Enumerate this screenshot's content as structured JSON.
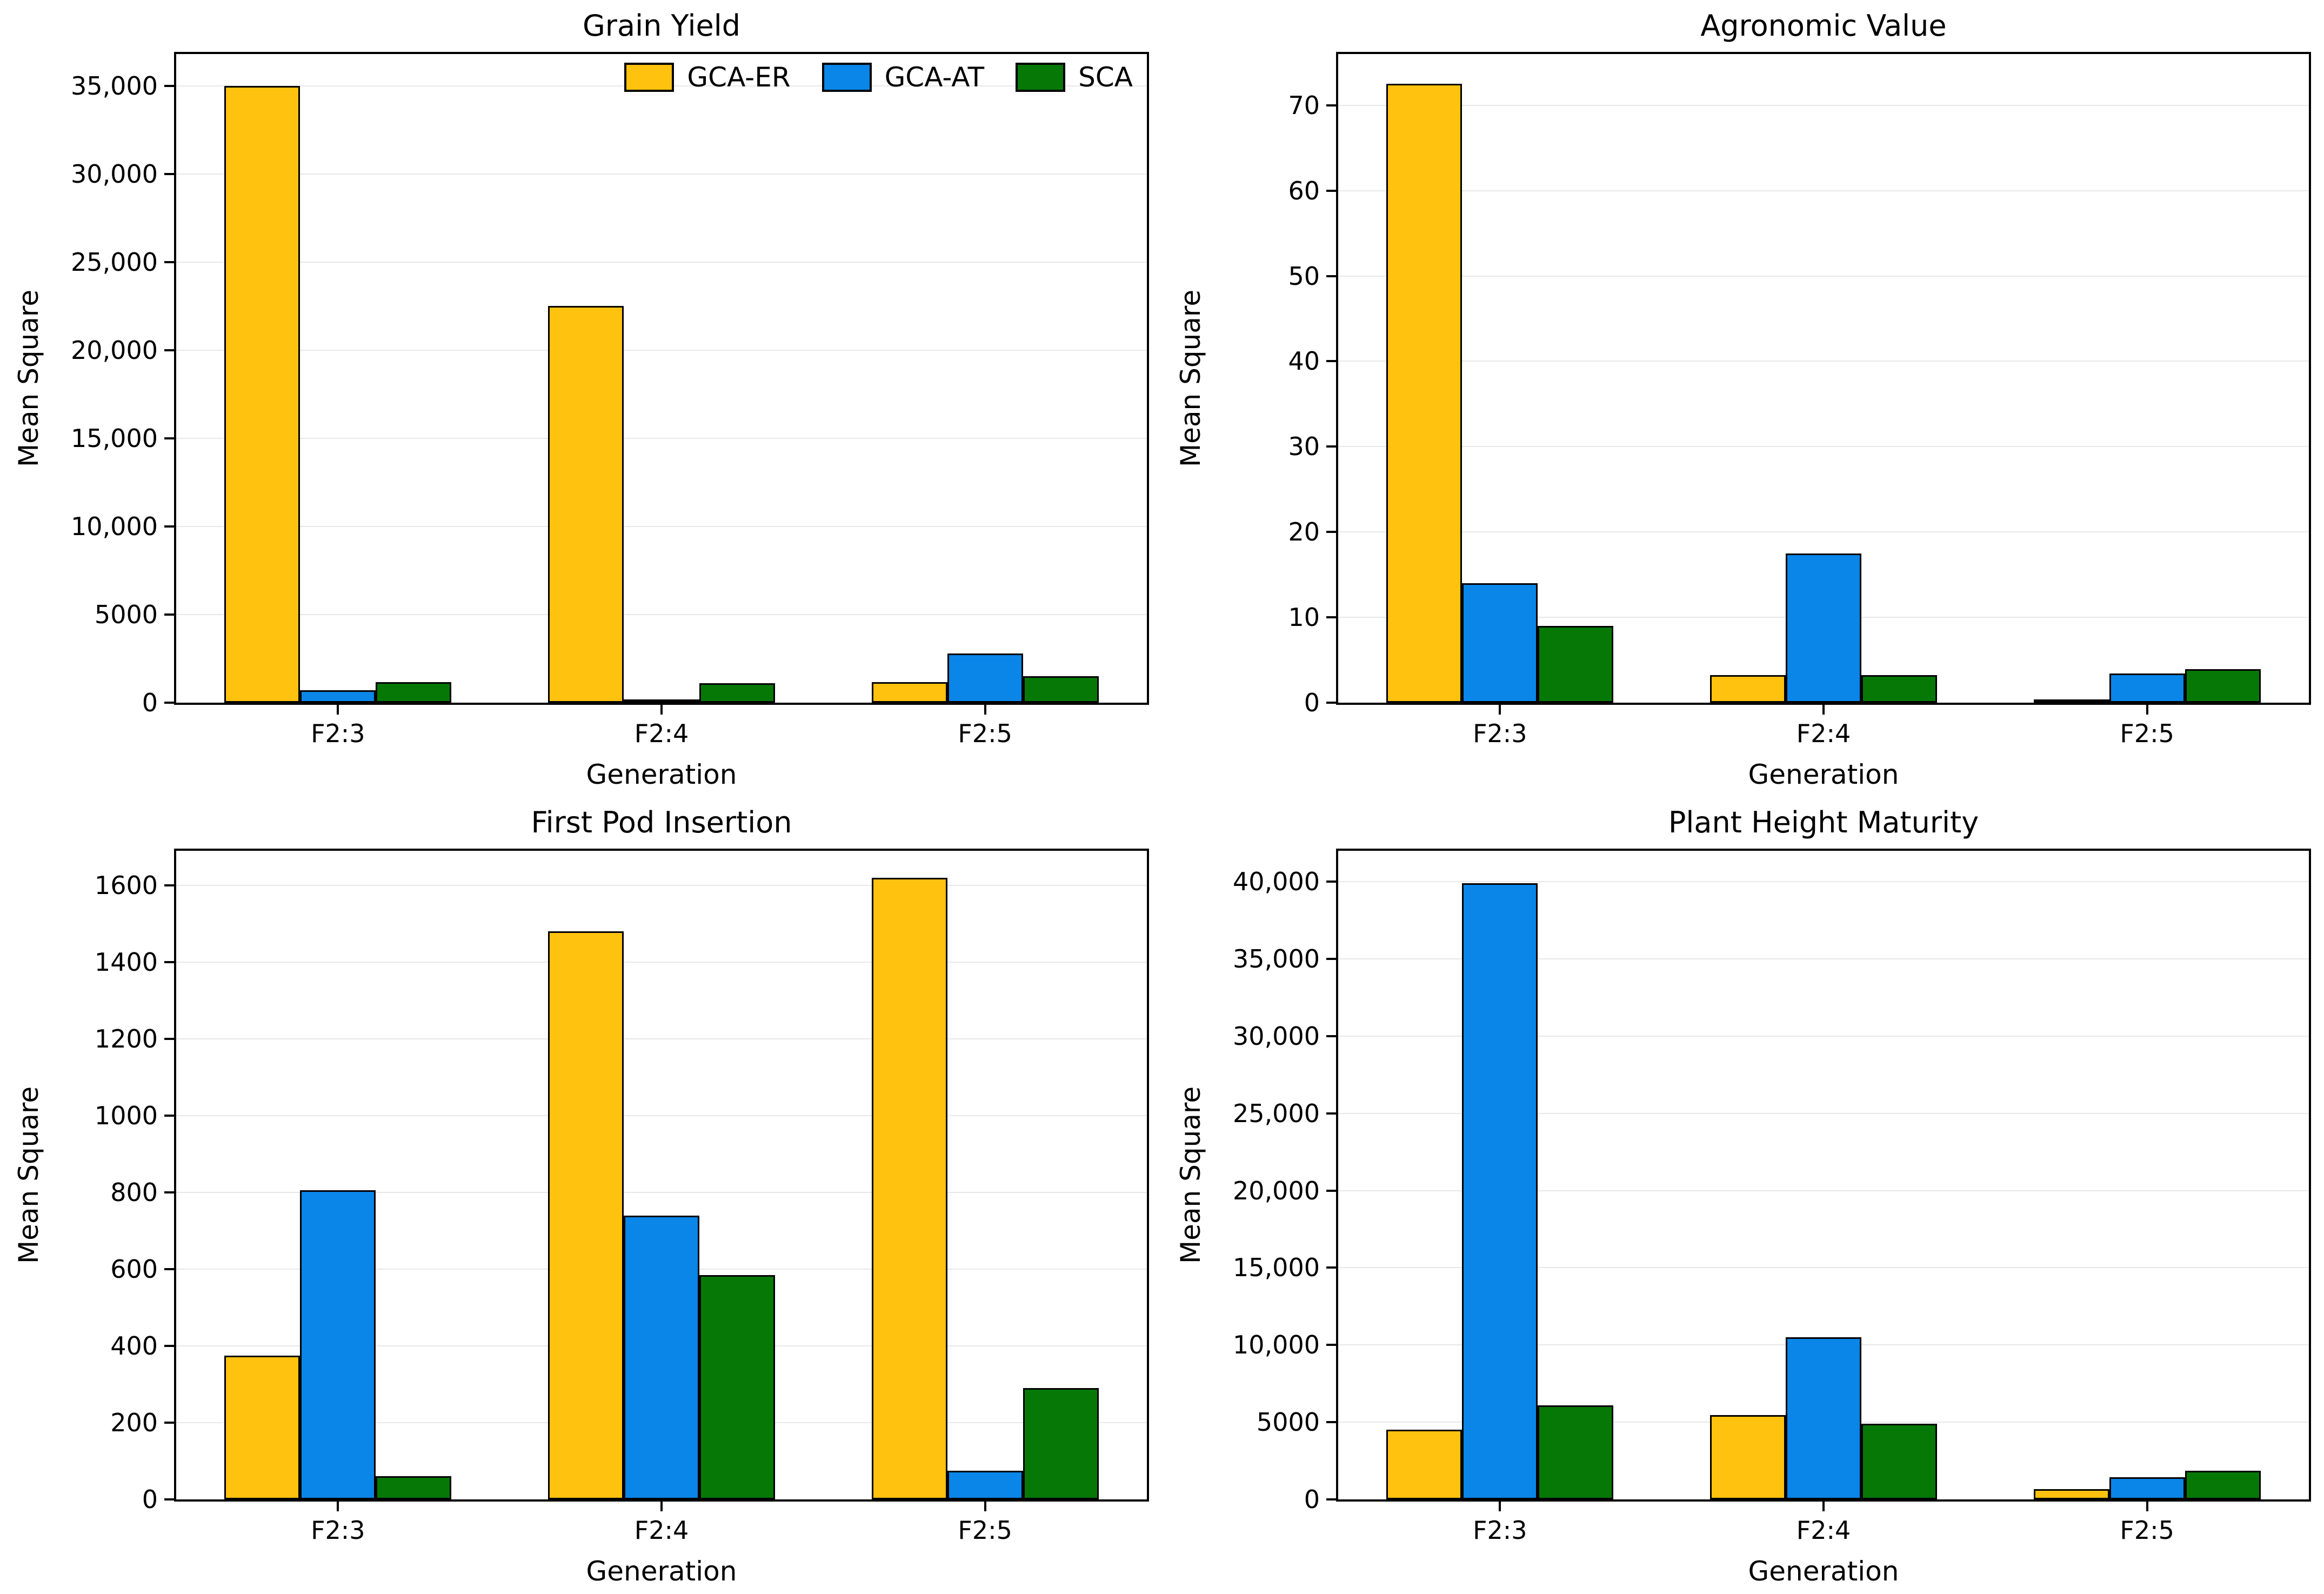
{
  "figure": {
    "background": "#ffffff"
  },
  "colors": {
    "gca_er": "#FFC20E",
    "gca_at": "#0A86E8",
    "sca": "#067806",
    "bar_edge": "#000000",
    "gridline": "#e8e8e8"
  },
  "legend": {
    "items": [
      {
        "label": "GCA-ER",
        "color": "#FFC20E"
      },
      {
        "label": "GCA-AT",
        "color": "#0A86E8"
      },
      {
        "label": "SCA",
        "color": "#067806"
      }
    ]
  },
  "chart_data": [
    {
      "type": "bar",
      "title": "Grain Yield",
      "xlabel": "Generation",
      "ylabel": "Mean Square",
      "categories": [
        "F2:3",
        "F2:4",
        "F2:5"
      ],
      "series": [
        {
          "name": "GCA-ER",
          "color": "#FFC20E",
          "values": [
            35000,
            22500,
            1150
          ]
        },
        {
          "name": "GCA-AT",
          "color": "#0A86E8",
          "values": [
            700,
            50,
            2800
          ]
        },
        {
          "name": "SCA",
          "color": "#067806",
          "values": [
            1150,
            1100,
            1500
          ]
        }
      ],
      "ylim": [
        0,
        36800
      ],
      "grid": true,
      "legend": true,
      "legend_position": "upper right",
      "yticks": [
        {
          "v": 0,
          "label": "0"
        },
        {
          "v": 5000,
          "label": "5000"
        },
        {
          "v": 10000,
          "label": "10,000"
        },
        {
          "v": 15000,
          "label": "15,000"
        },
        {
          "v": 20000,
          "label": "20,000"
        },
        {
          "v": 25000,
          "label": "25,000"
        },
        {
          "v": 30000,
          "label": "30,000"
        },
        {
          "v": 35000,
          "label": "35,000"
        }
      ]
    },
    {
      "type": "bar",
      "title": "Agronomic Value",
      "xlabel": "Generation",
      "ylabel": "Mean Square",
      "categories": [
        "F2:3",
        "F2:4",
        "F2:5"
      ],
      "series": [
        {
          "name": "GCA-ER",
          "color": "#FFC20E",
          "values": [
            72.5,
            3.2,
            0.1
          ]
        },
        {
          "name": "GCA-AT",
          "color": "#0A86E8",
          "values": [
            14,
            17.5,
            3.4
          ]
        },
        {
          "name": "SCA",
          "color": "#067806",
          "values": [
            9,
            3.2,
            3.9
          ]
        }
      ],
      "ylim": [
        0,
        76
      ],
      "grid": true,
      "legend": false,
      "yticks": [
        {
          "v": 0,
          "label": "0"
        },
        {
          "v": 10,
          "label": "10"
        },
        {
          "v": 20,
          "label": "20"
        },
        {
          "v": 30,
          "label": "30"
        },
        {
          "v": 40,
          "label": "40"
        },
        {
          "v": 50,
          "label": "50"
        },
        {
          "v": 60,
          "label": "60"
        },
        {
          "v": 70,
          "label": "70"
        }
      ]
    },
    {
      "type": "bar",
      "title": "First Pod Insertion",
      "xlabel": "Generation",
      "ylabel": "Mean Square",
      "categories": [
        "F2:3",
        "F2:4",
        "F2:5"
      ],
      "series": [
        {
          "name": "GCA-ER",
          "color": "#FFC20E",
          "values": [
            375,
            1480,
            1620
          ]
        },
        {
          "name": "GCA-AT",
          "color": "#0A86E8",
          "values": [
            805,
            740,
            75
          ]
        },
        {
          "name": "SCA",
          "color": "#067806",
          "values": [
            60,
            585,
            290
          ]
        }
      ],
      "ylim": [
        0,
        1690
      ],
      "grid": true,
      "legend": false,
      "yticks": [
        {
          "v": 0,
          "label": "0"
        },
        {
          "v": 200,
          "label": "200"
        },
        {
          "v": 400,
          "label": "400"
        },
        {
          "v": 600,
          "label": "600"
        },
        {
          "v": 800,
          "label": "800"
        },
        {
          "v": 1000,
          "label": "1000"
        },
        {
          "v": 1200,
          "label": "1200"
        },
        {
          "v": 1400,
          "label": "1400"
        },
        {
          "v": 1600,
          "label": "1600"
        }
      ]
    },
    {
      "type": "bar",
      "title": "Plant Height Maturity",
      "xlabel": "Generation",
      "ylabel": "Mean Square",
      "categories": [
        "F2:3",
        "F2:4",
        "F2:5"
      ],
      "series": [
        {
          "name": "GCA-ER",
          "color": "#FFC20E",
          "values": [
            4500,
            5450,
            650
          ]
        },
        {
          "name": "GCA-AT",
          "color": "#0A86E8",
          "values": [
            39900,
            10500,
            1450
          ]
        },
        {
          "name": "SCA",
          "color": "#067806",
          "values": [
            6100,
            4900,
            1850
          ]
        }
      ],
      "ylim": [
        0,
        42000
      ],
      "grid": true,
      "legend": false,
      "yticks": [
        {
          "v": 0,
          "label": "0"
        },
        {
          "v": 5000,
          "label": "5000"
        },
        {
          "v": 10000,
          "label": "10,000"
        },
        {
          "v": 15000,
          "label": "15,000"
        },
        {
          "v": 20000,
          "label": "20,000"
        },
        {
          "v": 25000,
          "label": "25,000"
        },
        {
          "v": 30000,
          "label": "30,000"
        },
        {
          "v": 35000,
          "label": "35,000"
        },
        {
          "v": 40000,
          "label": "40,000"
        }
      ]
    }
  ]
}
